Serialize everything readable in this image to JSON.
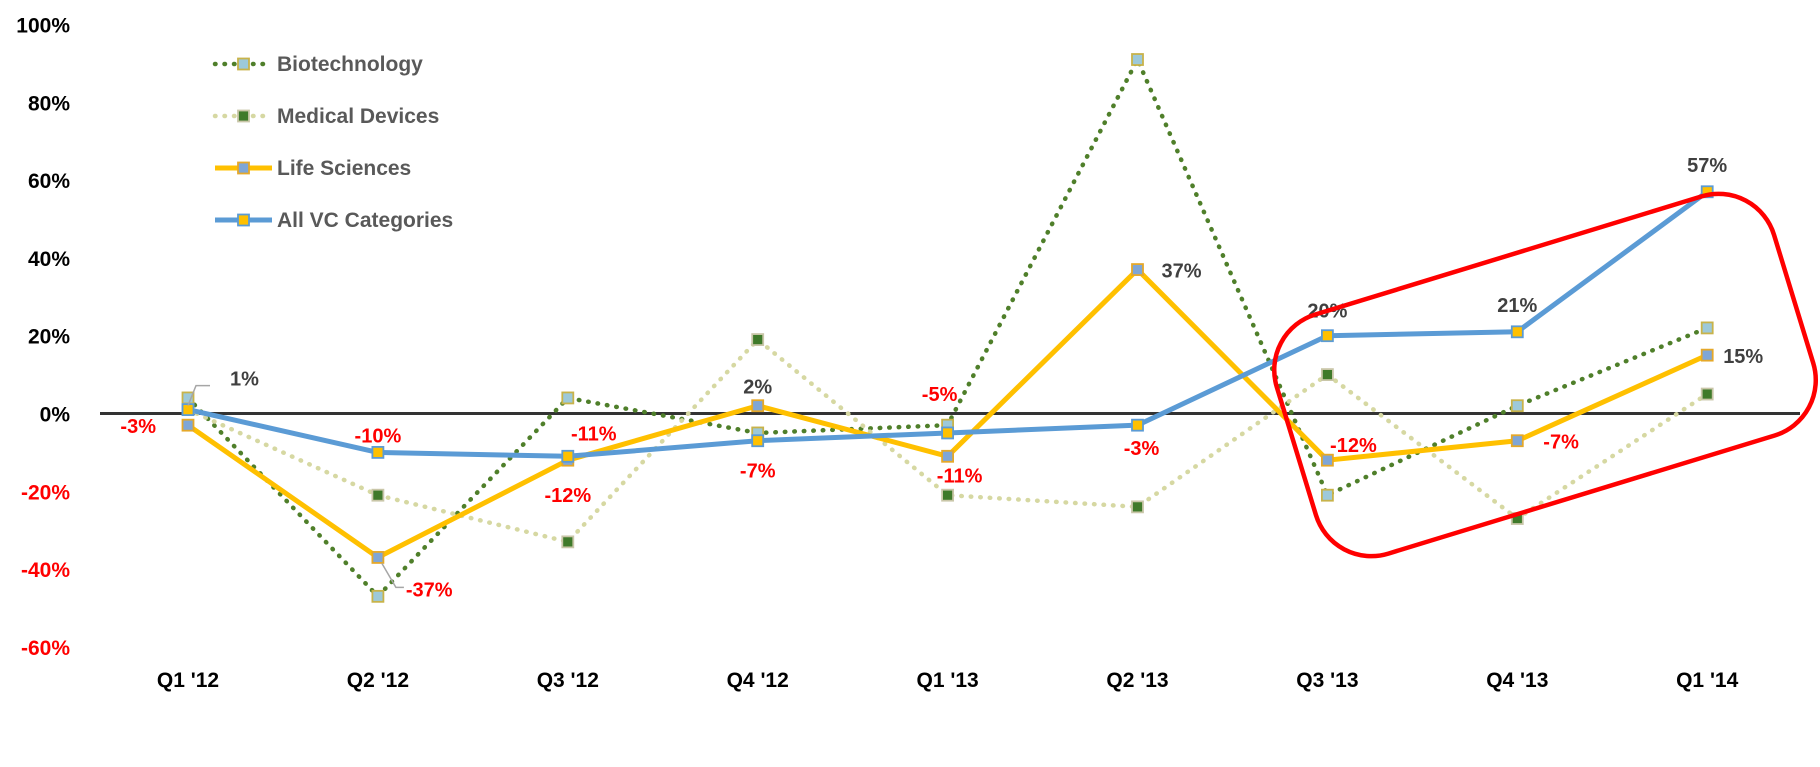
{
  "chart_data": {
    "type": "line",
    "categories": [
      "Q1 '12",
      "Q2 '12",
      "Q3 '12",
      "Q4 '12",
      "Q1 '13",
      "Q2 '13",
      "Q3 '13",
      "Q4 '13",
      "Q1 '14"
    ],
    "ylim": [
      -60,
      100
    ],
    "yticks": [
      -60,
      -40,
      -20,
      0,
      20,
      40,
      60,
      80,
      100
    ],
    "ytick_labels": [
      "-60%",
      "-40%",
      "-20%",
      "0%",
      "20%",
      "40%",
      "60%",
      "80%",
      "100%"
    ],
    "negative_tick_color": "#ff0000",
    "positive_tick_color": "#000000",
    "zero_line_color": "#333333",
    "grid": false,
    "legend_position": "top-left",
    "series": [
      {
        "name": "Biotechnology",
        "values": [
          4,
          -47,
          4,
          -5,
          -3,
          91,
          -21,
          2,
          22
        ],
        "line_color": "#4f7f2a",
        "line_style": "dotted",
        "marker_fill": "#9dc9d9",
        "marker_stroke": "#c8b34a"
      },
      {
        "name": "Medical Devices",
        "values": [
          1,
          -21,
          -33,
          19,
          -21,
          -24,
          10,
          -27,
          5
        ],
        "line_color": "#d6d8a2",
        "line_style": "dotted",
        "marker_fill": "#3f7a2a",
        "marker_stroke": "#c9c6a8"
      },
      {
        "name": "Life Sciences",
        "values": [
          -3,
          -37,
          -12,
          2,
          -11,
          37,
          -12,
          -7,
          15
        ],
        "line_color": "#ffc000",
        "line_style": "solid",
        "marker_fill": "#7fa6d6",
        "marker_stroke": "#e5a82a"
      },
      {
        "name": "All VC Categories",
        "values": [
          1,
          -10,
          -11,
          -7,
          -5,
          -3,
          20,
          21,
          57
        ],
        "line_color": "#5b9bd5",
        "line_style": "solid",
        "marker_fill": "#ffc000",
        "marker_stroke": "#5b9bd5"
      }
    ],
    "data_labels": [
      {
        "text": "1%",
        "series": "All VC Categories",
        "index": 0,
        "color": "#404040"
      },
      {
        "text": "-3%",
        "series": "Life Sciences",
        "index": 0,
        "color": "#ff0000"
      },
      {
        "text": "-10%",
        "series": "All VC Categories",
        "index": 1,
        "color": "#ff0000"
      },
      {
        "text": "-37%",
        "series": "Life Sciences",
        "index": 1,
        "color": "#ff0000"
      },
      {
        "text": "-11%",
        "series": "All VC Categories",
        "index": 2,
        "color": "#ff0000"
      },
      {
        "text": "-12%",
        "series": "Life Sciences",
        "index": 2,
        "color": "#ff0000"
      },
      {
        "text": "2%",
        "series": "Life Sciences",
        "index": 3,
        "color": "#404040"
      },
      {
        "text": "-7%",
        "series": "All VC Categories",
        "index": 3,
        "color": "#ff0000"
      },
      {
        "text": "-5%",
        "series": "All VC Categories",
        "index": 4,
        "color": "#ff0000"
      },
      {
        "text": "-11%",
        "series": "Life Sciences",
        "index": 4,
        "color": "#ff0000"
      },
      {
        "text": "37%",
        "series": "Life Sciences",
        "index": 5,
        "color": "#404040"
      },
      {
        "text": "-3%",
        "series": "All VC Categories",
        "index": 5,
        "color": "#ff0000"
      },
      {
        "text": "20%",
        "series": "All VC Categories",
        "index": 6,
        "color": "#404040"
      },
      {
        "text": "-12%",
        "series": "Life Sciences",
        "index": 6,
        "color": "#ff0000"
      },
      {
        "text": "21%",
        "series": "All VC Categories",
        "index": 7,
        "color": "#404040"
      },
      {
        "text": "-7%",
        "series": "Life Sciences",
        "index": 7,
        "color": "#ff0000"
      },
      {
        "text": "57%",
        "series": "All VC Categories",
        "index": 8,
        "color": "#404040"
      },
      {
        "text": "15%",
        "series": "Life Sciences",
        "index": 8,
        "color": "#404040"
      }
    ],
    "highlight_color": "#ff0000"
  }
}
